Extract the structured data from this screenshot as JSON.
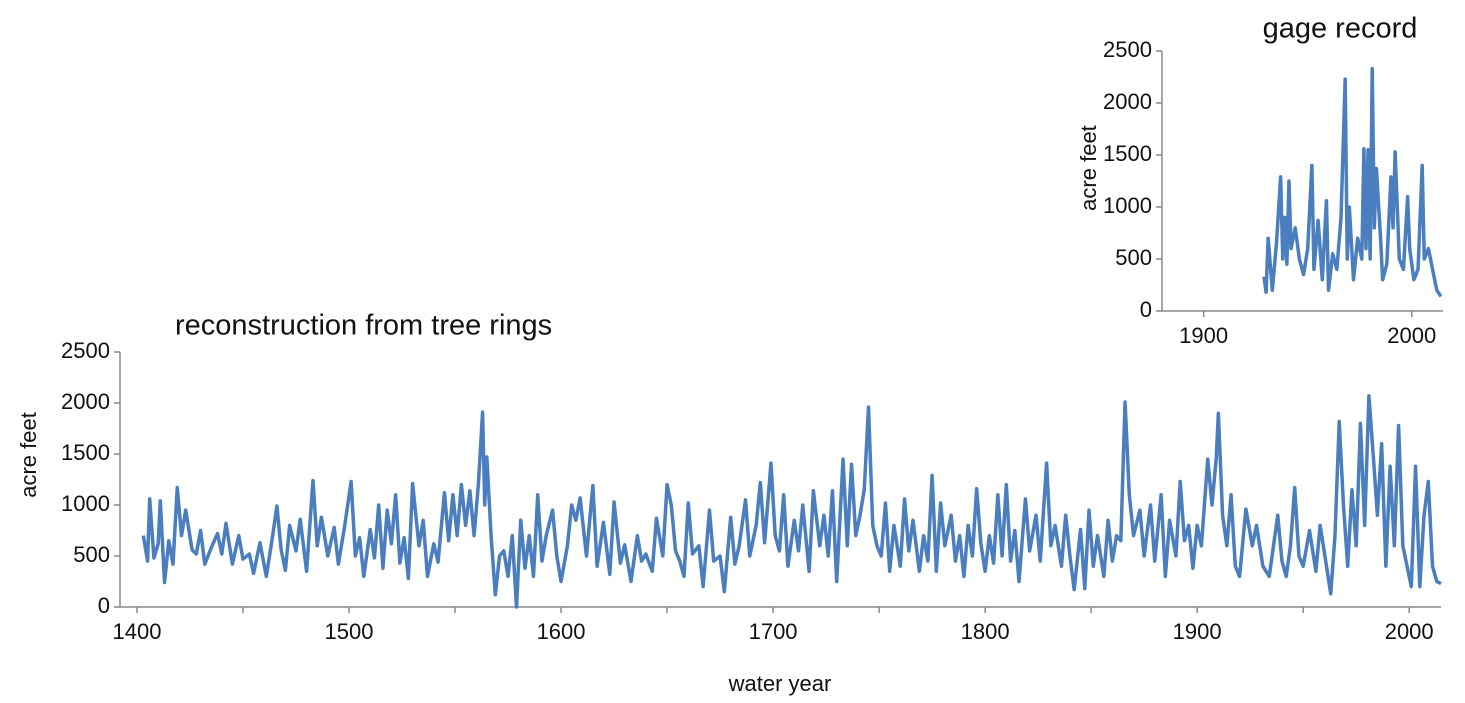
{
  "chart_data": [
    {
      "type": "line",
      "title": "reconstruction from tree rings",
      "ylabel": "acre feet",
      "xlabel": "water year",
      "xlim": [
        1392,
        2015
      ],
      "xticks": [
        1400,
        1500,
        1600,
        1700,
        1800,
        1900,
        2000
      ],
      "minor_xticks": [
        1450,
        1550,
        1650,
        1750,
        1850,
        1950
      ],
      "ylim": [
        0,
        2500
      ],
      "yticks": [
        0,
        500,
        1000,
        1500,
        2000,
        2500
      ],
      "x": [
        1403,
        1405,
        1406,
        1408,
        1410,
        1411,
        1413,
        1415,
        1417,
        1419,
        1421,
        1423,
        1426,
        1428,
        1430,
        1432,
        1435,
        1438,
        1440,
        1442,
        1445,
        1448,
        1450,
        1453,
        1455,
        1458,
        1461,
        1464,
        1466,
        1468,
        1470,
        1472,
        1475,
        1477,
        1480,
        1483,
        1485,
        1487,
        1490,
        1493,
        1495,
        1498,
        1501,
        1503,
        1505,
        1507,
        1510,
        1512,
        1514,
        1516,
        1518,
        1520,
        1522,
        1524,
        1526,
        1528,
        1530,
        1533,
        1535,
        1537,
        1540,
        1542,
        1545,
        1547,
        1549,
        1551,
        1553,
        1555,
        1557,
        1559,
        1561,
        1563,
        1564,
        1565,
        1567,
        1569,
        1571,
        1573,
        1575,
        1577,
        1579,
        1581,
        1583,
        1585,
        1587,
        1589,
        1591,
        1593,
        1596,
        1598,
        1600,
        1603,
        1605,
        1607,
        1609,
        1612,
        1615,
        1617,
        1620,
        1623,
        1625,
        1628,
        1630,
        1633,
        1636,
        1638,
        1640,
        1643,
        1645,
        1648,
        1650,
        1652,
        1654,
        1656,
        1658,
        1660,
        1662,
        1665,
        1667,
        1670,
        1672,
        1675,
        1677,
        1680,
        1682,
        1684,
        1687,
        1689,
        1692,
        1694,
        1696,
        1699,
        1701,
        1703,
        1705,
        1707,
        1710,
        1712,
        1714,
        1717,
        1719,
        1722,
        1724,
        1726,
        1728,
        1730,
        1733,
        1735,
        1737,
        1739,
        1741,
        1743,
        1745,
        1747,
        1749,
        1751,
        1753,
        1755,
        1757,
        1760,
        1762,
        1764,
        1766,
        1769,
        1771,
        1773,
        1775,
        1777,
        1779,
        1781,
        1784,
        1786,
        1788,
        1790,
        1792,
        1794,
        1796,
        1798,
        1800,
        1802,
        1804,
        1806,
        1808,
        1810,
        1812,
        1814,
        1816,
        1819,
        1821,
        1824,
        1826,
        1829,
        1831,
        1833,
        1836,
        1838,
        1840,
        1842,
        1845,
        1847,
        1849,
        1851,
        1853,
        1856,
        1858,
        1860,
        1862,
        1864,
        1866,
        1868,
        1870,
        1873,
        1875,
        1878,
        1880,
        1883,
        1885,
        1887,
        1890,
        1892,
        1894,
        1896,
        1898,
        1900,
        1902,
        1905,
        1907,
        1909,
        1910,
        1912,
        1914,
        1916,
        1918,
        1920,
        1923,
        1926,
        1928,
        1931,
        1934,
        1936,
        1938,
        1940,
        1942,
        1944,
        1946,
        1948,
        1950,
        1953,
        1956,
        1958,
        1961,
        1963,
        1965,
        1967,
        1969,
        1971,
        1973,
        1975,
        1977,
        1979,
        1981,
        1983,
        1985,
        1987,
        1989,
        1991,
        1993,
        1995,
        1997,
        1999,
        2001,
        2003,
        2005,
        2007,
        2009,
        2011,
        2013,
        2015
      ],
      "series": [
        {
          "color": "#4a7ebf",
          "values": [
            700,
            450,
            1060,
            480,
            620,
            1040,
            240,
            650,
            420,
            1170,
            700,
            950,
            560,
            520,
            750,
            420,
            580,
            720,
            520,
            820,
            420,
            700,
            470,
            520,
            330,
            630,
            300,
            700,
            990,
            560,
            360,
            800,
            550,
            860,
            350,
            1240,
            600,
            880,
            500,
            780,
            420,
            800,
            1230,
            500,
            680,
            300,
            760,
            480,
            1000,
            380,
            950,
            620,
            1100,
            430,
            680,
            280,
            1210,
            600,
            850,
            300,
            620,
            440,
            1120,
            650,
            1100,
            700,
            1200,
            800,
            1140,
            700,
            1200,
            1910,
            1000,
            1470,
            700,
            120,
            500,
            550,
            300,
            700,
            0,
            850,
            380,
            700,
            300,
            1100,
            450,
            700,
            950,
            500,
            250,
            600,
            1000,
            850,
            1070,
            500,
            1190,
            400,
            830,
            320,
            1030,
            430,
            610,
            250,
            700,
            450,
            520,
            350,
            870,
            500,
            1200,
            1000,
            550,
            450,
            300,
            1020,
            520,
            600,
            200,
            950,
            450,
            500,
            150,
            880,
            420,
            600,
            1050,
            500,
            800,
            1220,
            630,
            1410,
            700,
            550,
            1100,
            400,
            850,
            550,
            1000,
            350,
            1140,
            600,
            900,
            500,
            1140,
            250,
            1450,
            600,
            1400,
            700,
            900,
            1150,
            1960,
            800,
            600,
            500,
            1020,
            350,
            800,
            400,
            1060,
            550,
            850,
            350,
            700,
            450,
            1290,
            350,
            1020,
            600,
            900,
            450,
            700,
            300,
            800,
            500,
            1160,
            620,
            350,
            700,
            430,
            1100,
            500,
            1200,
            450,
            750,
            250,
            1060,
            550,
            900,
            450,
            1410,
            600,
            800,
            400,
            900,
            500,
            170,
            760,
            180,
            950,
            400,
            700,
            300,
            850,
            450,
            700,
            650,
            2010,
            1100,
            700,
            950,
            500,
            1000,
            450,
            1100,
            300,
            850,
            500,
            1230,
            650,
            800,
            380,
            800,
            600,
            1450,
            1000,
            1460,
            1900,
            900,
            600,
            1100,
            400,
            300,
            960,
            600,
            800,
            400,
            300,
            600,
            900,
            450,
            300,
            600,
            1170,
            500,
            400,
            750,
            350,
            800,
            400,
            130,
            700,
            1820,
            1000,
            400,
            1150,
            600,
            1800,
            800,
            2070,
            1500,
            900,
            1600,
            400,
            1380,
            600,
            1780,
            600,
            400,
            200,
            1380,
            200,
            900,
            1230,
            400,
            250,
            230
          ]
        }
      ]
    },
    {
      "type": "line",
      "title": "gage record",
      "ylabel": "acre feet",
      "xlim": [
        1880,
        2015
      ],
      "xticks": [
        1900,
        2000
      ],
      "ylim": [
        0,
        2500
      ],
      "yticks": [
        0,
        500,
        1000,
        1500,
        2000,
        2500
      ],
      "x": [
        1929,
        1930,
        1931,
        1933,
        1935,
        1937,
        1938,
        1939,
        1940,
        1941,
        1942,
        1944,
        1946,
        1948,
        1950,
        1952,
        1953,
        1955,
        1957,
        1959,
        1960,
        1962,
        1964,
        1966,
        1968,
        1969,
        1970,
        1972,
        1974,
        1976,
        1977,
        1978,
        1979,
        1980,
        1981,
        1982,
        1983,
        1985,
        1986,
        1988,
        1990,
        1991,
        1992,
        1994,
        1996,
        1998,
        1999,
        2001,
        2003,
        2005,
        2006,
        2008,
        2010,
        2012,
        2014
      ],
      "series": [
        {
          "color": "#4a7ebf",
          "values": [
            330,
            180,
            700,
            200,
            650,
            1290,
            500,
            900,
            450,
            1250,
            600,
            800,
            500,
            350,
            600,
            1400,
            400,
            870,
            300,
            1060,
            200,
            550,
            400,
            900,
            2230,
            500,
            1000,
            300,
            700,
            500,
            1560,
            600,
            1550,
            500,
            2330,
            800,
            1370,
            700,
            300,
            450,
            1290,
            800,
            1530,
            500,
            400,
            1100,
            600,
            300,
            400,
            1400,
            500,
            600,
            400,
            200,
            140
          ]
        }
      ]
    }
  ]
}
